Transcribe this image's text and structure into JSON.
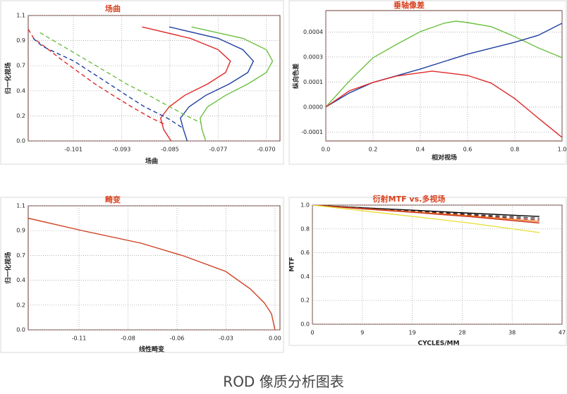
{
  "chart_data": [
    {
      "type": "line",
      "title": "场曲",
      "x_label": "场曲",
      "y_label": "归一化视场",
      "xlim": [
        -0.1081,
        -0.0674
      ],
      "ylim": [
        0,
        1.1
      ],
      "grid": true,
      "xticks": [
        {
          "value": -0.1008,
          "label": "-0.101"
        },
        {
          "value": -0.093,
          "label": "-0.093"
        },
        {
          "value": -0.0852,
          "label": "-0.085"
        },
        {
          "value": -0.0774,
          "label": "-0.077"
        },
        {
          "value": -0.0696,
          "label": "-0.070"
        }
      ],
      "yticks": [
        {
          "value": 0,
          "label": "0.0"
        },
        {
          "value": 0.22,
          "label": "0.2"
        },
        {
          "value": 0.44,
          "label": "0.4"
        },
        {
          "value": 0.66,
          "label": "0.7"
        },
        {
          "value": 0.88,
          "label": "0.9"
        },
        1.1
      ],
      "series": [
        {
          "color": "#e02828",
          "dash": false,
          "x": [
            -0.0897,
            -0.0819,
            -0.0774,
            -0.0754,
            -0.0762,
            -0.0791,
            -0.0828,
            -0.0853,
            -0.0867,
            -0.0862,
            -0.085
          ],
          "values": [
            1.0,
            0.9,
            0.8,
            0.7,
            0.6,
            0.5,
            0.4,
            0.3,
            0.2,
            0.1,
            0.0
          ]
        },
        {
          "color": "#1f3f9f",
          "dash": false,
          "x": [
            -0.0853,
            -0.0774,
            -0.0734,
            -0.0717,
            -0.0726,
            -0.0756,
            -0.0794,
            -0.0821,
            -0.0835,
            -0.083,
            -0.0824
          ],
          "values": [
            1.0,
            0.9,
            0.8,
            0.7,
            0.6,
            0.5,
            0.4,
            0.3,
            0.2,
            0.1,
            0.0
          ]
        },
        {
          "color": "#6cc040",
          "dash": false,
          "x": [
            -0.0817,
            -0.0734,
            -0.0696,
            -0.0686,
            -0.0696,
            -0.0726,
            -0.0762,
            -0.0791,
            -0.0803,
            -0.08,
            -0.0794
          ],
          "values": [
            1.0,
            0.9,
            0.8,
            0.7,
            0.6,
            0.5,
            0.4,
            0.3,
            0.2,
            0.1,
            0.0
          ]
        },
        {
          "color": "#e02828",
          "dash": true,
          "x": [
            -0.1081,
            -0.1072,
            -0.1024,
            -0.0973,
            -0.0944,
            -0.0914,
            -0.0882,
            -0.0862
          ],
          "values": [
            0.98,
            0.9,
            0.7,
            0.5,
            0.4,
            0.3,
            0.2,
            0.15
          ]
        },
        {
          "color": "#1f3f9f",
          "dash": true,
          "x": [
            -0.1073,
            -0.1058,
            -0.1007,
            -0.095,
            -0.0922,
            -0.0893,
            -0.0856,
            -0.0833
          ],
          "values": [
            0.9,
            0.83,
            0.7,
            0.5,
            0.4,
            0.3,
            0.2,
            0.12
          ]
        },
        {
          "color": "#6cc040",
          "dash": true,
          "x": [
            -0.1062,
            -0.0984,
            -0.0922,
            -0.0893,
            -0.0859,
            -0.0825,
            -0.0802
          ],
          "values": [
            0.95,
            0.7,
            0.5,
            0.42,
            0.32,
            0.22,
            0.16
          ]
        }
      ]
    },
    {
      "type": "line",
      "title": "垂轴像差",
      "x_label": "相对视场",
      "y_label": "纵向色差",
      "xlim": [
        0,
        1
      ],
      "ylim": [
        -0.00019,
        0.00054
      ],
      "grid": true,
      "xticks": [
        {
          "value": 0,
          "label": "0.0"
        },
        0.2,
        0.4,
        0.6,
        0.8,
        {
          "value": 1,
          "label": "1.0"
        }
      ],
      "yticks": [
        {
          "value": -0.00014,
          "label": "-0.0001"
        },
        {
          "value": 0,
          "label": "0.0000"
        },
        {
          "value": 0.00014,
          "label": "0.0001"
        },
        {
          "value": 0.00028,
          "label": "0.0003"
        },
        {
          "value": 0.00042,
          "label": "0.0004"
        }
      ],
      "series": [
        {
          "color": "#6cc040",
          "dash": false,
          "x": [
            0,
            0.1,
            0.2,
            0.3,
            0.4,
            0.5,
            0.55,
            0.6,
            0.7,
            0.8,
            0.9,
            1.0
          ],
          "values": [
            0,
            0.000146,
            0.000276,
            0.000351,
            0.000422,
            0.000469,
            0.000481,
            0.000473,
            0.00045,
            0.000394,
            0.000331,
            0.000276
          ]
        },
        {
          "color": "#1f3f9f",
          "dash": false,
          "x": [
            0,
            0.1,
            0.2,
            0.4,
            0.6,
            0.8,
            0.9,
            1.0
          ],
          "values": [
            0,
            7.9e-05,
            0.000138,
            0.000213,
            0.000296,
            0.000363,
            0.000402,
            0.000469
          ]
        },
        {
          "color": "#e02828",
          "dash": false,
          "x": [
            0,
            0.1,
            0.2,
            0.3,
            0.45,
            0.6,
            0.7,
            0.8,
            0.9,
            1.0
          ],
          "values": [
            0,
            9.1e-05,
            0.000138,
            0.000174,
            0.000201,
            0.000177,
            0.000134,
            4.7e-05,
            -6.3e-05,
            -0.00017
          ]
        }
      ]
    },
    {
      "type": "line",
      "title": "畸变",
      "x_label": "线性畸变",
      "y_label": "归一化视场",
      "xlim": [
        -0.1385,
        0.0028
      ],
      "ylim": [
        0,
        1.1
      ],
      "grid": true,
      "xticks": [
        -0.11,
        {
          "value": -0.0825,
          "label": "-0.08"
        },
        {
          "value": -0.055,
          "label": "-0.06"
        },
        {
          "value": -0.0275,
          "label": "-0.03"
        },
        {
          "value": 0,
          "label": "0.00"
        }
      ],
      "yticks": [
        {
          "value": 0,
          "label": "0.0"
        },
        {
          "value": 0.22,
          "label": "0.2"
        },
        {
          "value": 0.44,
          "label": "0.4"
        },
        {
          "value": 0.66,
          "label": "0.7"
        },
        {
          "value": 0.88,
          "label": "0.9"
        },
        1.1
      ],
      "series": [
        {
          "color": "#d04020",
          "dash": false,
          "x": [
            -0.1385,
            -0.1068,
            -0.0752,
            -0.0514,
            -0.0277,
            -0.0138,
            -0.0059,
            -0.002,
            0
          ],
          "values": [
            0.99,
            0.875,
            0.769,
            0.656,
            0.519,
            0.3625,
            0.2375,
            0.144,
            0
          ]
        }
      ]
    },
    {
      "type": "line",
      "title": "衍射MTF vs.多视场",
      "x_label": "CYCLES/MM",
      "y_label": "MTF",
      "xlim": [
        0,
        47.2
      ],
      "ylim": [
        0,
        1
      ],
      "grid": true,
      "xticks": [
        0,
        {
          "value": 9.44,
          "label": "9"
        },
        {
          "value": 18.88,
          "label": "19"
        },
        {
          "value": 28.32,
          "label": "28"
        },
        {
          "value": 37.76,
          "label": "38"
        },
        {
          "value": 47.2,
          "label": "47"
        }
      ],
      "yticks": [
        {
          "value": 0,
          "label": "0.0"
        },
        0.2,
        0.4,
        0.6,
        0.8,
        {
          "value": 1,
          "label": "1.0"
        }
      ],
      "series": [
        {
          "color": "#000000",
          "dash": false,
          "x": [
            0,
            10,
            20,
            30,
            42.9
          ],
          "values": [
            1,
            0.977,
            0.955,
            0.932,
            0.905
          ]
        },
        {
          "color": "#333333",
          "dash": true,
          "x": [
            0,
            10,
            20,
            30,
            42.9
          ],
          "values": [
            1,
            0.974,
            0.949,
            0.922,
            0.89
          ]
        },
        {
          "color": "#8b1010",
          "dash": true,
          "x": [
            0,
            10,
            20,
            30,
            42.9
          ],
          "values": [
            1,
            0.971,
            0.944,
            0.915,
            0.875
          ]
        },
        {
          "color": "#f08020",
          "dash": false,
          "x": [
            0,
            10,
            20,
            30,
            42.9
          ],
          "values": [
            1,
            0.969,
            0.94,
            0.908,
            0.862
          ]
        },
        {
          "color": "#c83020",
          "dash": false,
          "x": [
            0,
            10,
            20,
            30,
            42.9
          ],
          "values": [
            1,
            0.967,
            0.936,
            0.902,
            0.85
          ]
        },
        {
          "color": "#e8e040",
          "dash": false,
          "x": [
            0,
            10,
            20,
            30,
            42.9
          ],
          "values": [
            1,
            0.95,
            0.9,
            0.848,
            0.77
          ]
        }
      ]
    }
  ],
  "caption": "ROD 像质分析图表"
}
